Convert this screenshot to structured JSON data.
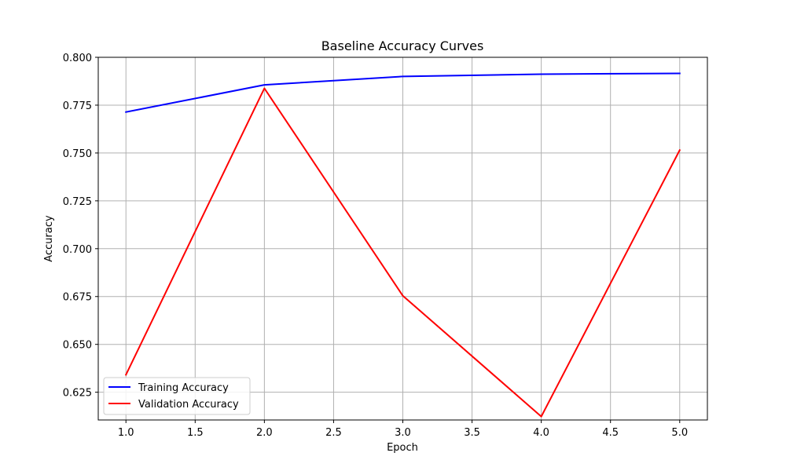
{
  "chart_data": {
    "type": "line",
    "title": "Baseline Accuracy Curves",
    "xlabel": "Epoch",
    "ylabel": "Accuracy",
    "x": [
      1,
      2,
      3,
      4,
      5
    ],
    "xlim": [
      0.8,
      5.2
    ],
    "ylim": [
      0.6105,
      0.8
    ],
    "xticks": [
      1.0,
      1.5,
      2.0,
      2.5,
      3.0,
      3.5,
      4.0,
      4.5,
      5.0
    ],
    "yticks": [
      0.625,
      0.65,
      0.675,
      0.7,
      0.725,
      0.75,
      0.775,
      0.8
    ],
    "xtick_labels": [
      "1.0",
      "1.5",
      "2.0",
      "2.5",
      "3.0",
      "3.5",
      "4.0",
      "4.5",
      "5.0"
    ],
    "ytick_labels": [
      "0.625",
      "0.650",
      "0.675",
      "0.700",
      "0.725",
      "0.750",
      "0.775",
      "0.800"
    ],
    "grid": true,
    "legend_position": "lower-left",
    "series": [
      {
        "name": "Training Accuracy",
        "color": "#0000ff",
        "values": [
          0.7714,
          0.7856,
          0.79,
          0.7912,
          0.7916
        ]
      },
      {
        "name": "Validation Accuracy",
        "color": "#ff0000",
        "values": [
          0.6341,
          0.7838,
          0.6754,
          0.6123,
          0.7515
        ]
      }
    ]
  }
}
